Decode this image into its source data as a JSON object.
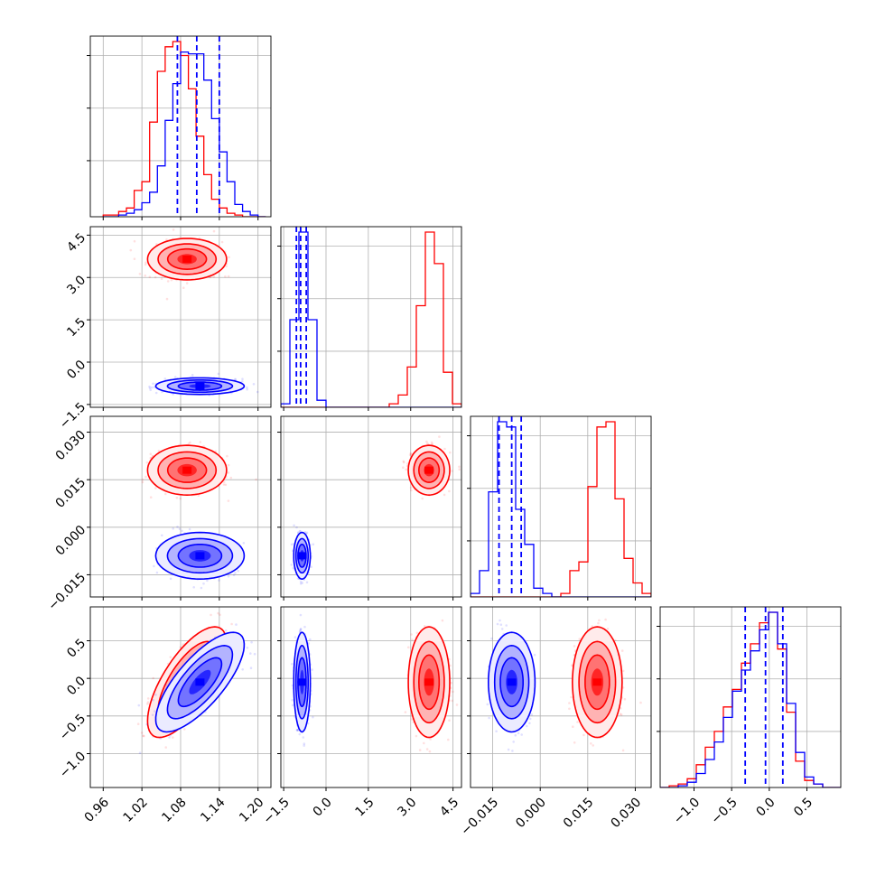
{
  "chart_data": {
    "type": "corner",
    "title": "",
    "grid": true,
    "colors": {
      "red": "#ff0000",
      "blue": "#0000ff"
    },
    "parameters": [
      {
        "index": 0,
        "range": [
          0.94,
          1.22
        ],
        "ticks": [
          0.96,
          1.02,
          1.08,
          1.14,
          1.2
        ],
        "tick_labels": [
          "0.96",
          "1.02",
          "1.08",
          "1.14",
          "1.20"
        ]
      },
      {
        "index": 1,
        "range": [
          -1.6,
          4.8
        ],
        "ticks": [
          -1.5,
          0.0,
          1.5,
          3.0,
          4.5
        ],
        "tick_labels": [
          "−1.5",
          "0.0",
          "1.5",
          "3.0",
          "4.5"
        ]
      },
      {
        "index": 2,
        "range": [
          -0.022,
          0.035
        ],
        "ticks": [
          -0.015,
          0.0,
          0.015,
          0.03
        ],
        "tick_labels": [
          "−0.015",
          "0.000",
          "0.015",
          "0.030"
        ]
      },
      {
        "index": 3,
        "range": [
          -1.45,
          0.95
        ],
        "ticks": [
          -1.0,
          -0.5,
          0.0,
          0.5
        ],
        "tick_labels": [
          "−1.0",
          "−0.5",
          "0.0",
          "0.5"
        ]
      }
    ],
    "series": [
      {
        "color": "#ff0000",
        "mean": [
          1.09,
          3.65,
          0.018,
          -0.05
        ],
        "sd": [
          0.025,
          0.3,
          0.0032,
          0.3
        ],
        "correlations": [
          [
            0,
            3,
            0.7
          ]
        ]
      },
      {
        "color": "#0000ff",
        "mean": [
          1.11,
          -0.85,
          -0.009,
          -0.05
        ],
        "sd": [
          0.028,
          0.12,
          0.003,
          0.27
        ],
        "correlations": [
          [
            0,
            3,
            0.75
          ]
        ]
      }
    ],
    "quantile_lines": {
      "color": "#0000ff",
      "values": [
        [
          1.075,
          1.105,
          1.14
        ],
        [
          -1.05,
          -0.9,
          -0.7
        ],
        [
          -0.013,
          -0.009,
          -0.006
        ],
        [
          -0.32,
          -0.05,
          0.18
        ]
      ]
    },
    "histograms": [
      {
        "edges": [
          0.96,
          0.972,
          0.984,
          0.996,
          1.008,
          1.02,
          1.032,
          1.044,
          1.056,
          1.068,
          1.08,
          1.092,
          1.104,
          1.116,
          1.128,
          1.14,
          1.152,
          1.164,
          1.176,
          1.188,
          1.2,
          1.212
        ],
        "red": [
          0.01,
          0.01,
          0.03,
          0.05,
          0.15,
          0.2,
          0.54,
          0.83,
          0.97,
          1.0,
          0.92,
          0.73,
          0.46,
          0.24,
          0.1,
          0.05,
          0.02,
          0.01,
          0.0,
          0.0,
          0.0
        ],
        "blue": [
          0.0,
          0.0,
          0.01,
          0.02,
          0.04,
          0.08,
          0.14,
          0.29,
          0.55,
          0.76,
          0.94,
          0.93,
          0.93,
          0.78,
          0.56,
          0.37,
          0.2,
          0.07,
          0.03,
          0.01,
          0.0
        ]
      },
      {
        "edges": [
          -1.6,
          -1.28,
          -0.96,
          -0.64,
          -0.32,
          0.0,
          0.32,
          0.64,
          0.96,
          1.28,
          1.6,
          1.92,
          2.24,
          2.56,
          2.88,
          3.2,
          3.52,
          3.84,
          4.16,
          4.48,
          4.8
        ],
        "red": [
          0,
          0,
          0,
          0,
          0,
          0,
          0,
          0,
          0,
          0,
          0,
          0,
          0.02,
          0.07,
          0.23,
          0.58,
          1.0,
          0.82,
          0.2,
          0.02
        ],
        "blue": [
          0.02,
          0.5,
          1.0,
          0.5,
          0.04,
          0,
          0,
          0,
          0,
          0,
          0,
          0,
          0,
          0,
          0,
          0,
          0,
          0,
          0,
          0
        ]
      },
      {
        "edges": [
          -0.022,
          -0.01915,
          -0.0163,
          -0.01345,
          -0.0106,
          -0.00775,
          -0.0049,
          -0.00205,
          0.0008,
          0.00365,
          0.0065,
          0.00935,
          0.0122,
          0.01505,
          0.0179,
          0.02075,
          0.0236,
          0.02645,
          0.0293,
          0.03215,
          0.035
        ],
        "red": [
          0,
          0,
          0,
          0,
          0,
          0,
          0,
          0,
          0,
          0,
          0.02,
          0.15,
          0.2,
          0.63,
          0.97,
          1.0,
          0.56,
          0.22,
          0.08,
          0.02
        ],
        "blue": [
          0.02,
          0.15,
          0.6,
          1.0,
          0.97,
          0.5,
          0.3,
          0.05,
          0.02,
          0,
          0,
          0,
          0,
          0,
          0,
          0,
          0,
          0,
          0,
          0
        ]
      },
      {
        "edges": [
          -1.45,
          -1.33,
          -1.21,
          -1.09,
          -0.97,
          -0.85,
          -0.73,
          -0.61,
          -0.49,
          -0.37,
          -0.25,
          -0.13,
          -0.01,
          0.11,
          0.23,
          0.35,
          0.47,
          0.59,
          0.71,
          0.83,
          0.95
        ],
        "red": [
          0.0,
          0.01,
          0.02,
          0.05,
          0.13,
          0.23,
          0.32,
          0.46,
          0.56,
          0.71,
          0.82,
          0.94,
          1.0,
          0.79,
          0.43,
          0.15,
          0.04,
          0.02,
          0.0,
          0.0
        ],
        "blue": [
          0.0,
          0.0,
          0.01,
          0.03,
          0.08,
          0.16,
          0.26,
          0.4,
          0.55,
          0.67,
          0.78,
          0.9,
          1.0,
          0.82,
          0.48,
          0.2,
          0.06,
          0.02,
          0.0,
          0.0
        ]
      }
    ]
  }
}
